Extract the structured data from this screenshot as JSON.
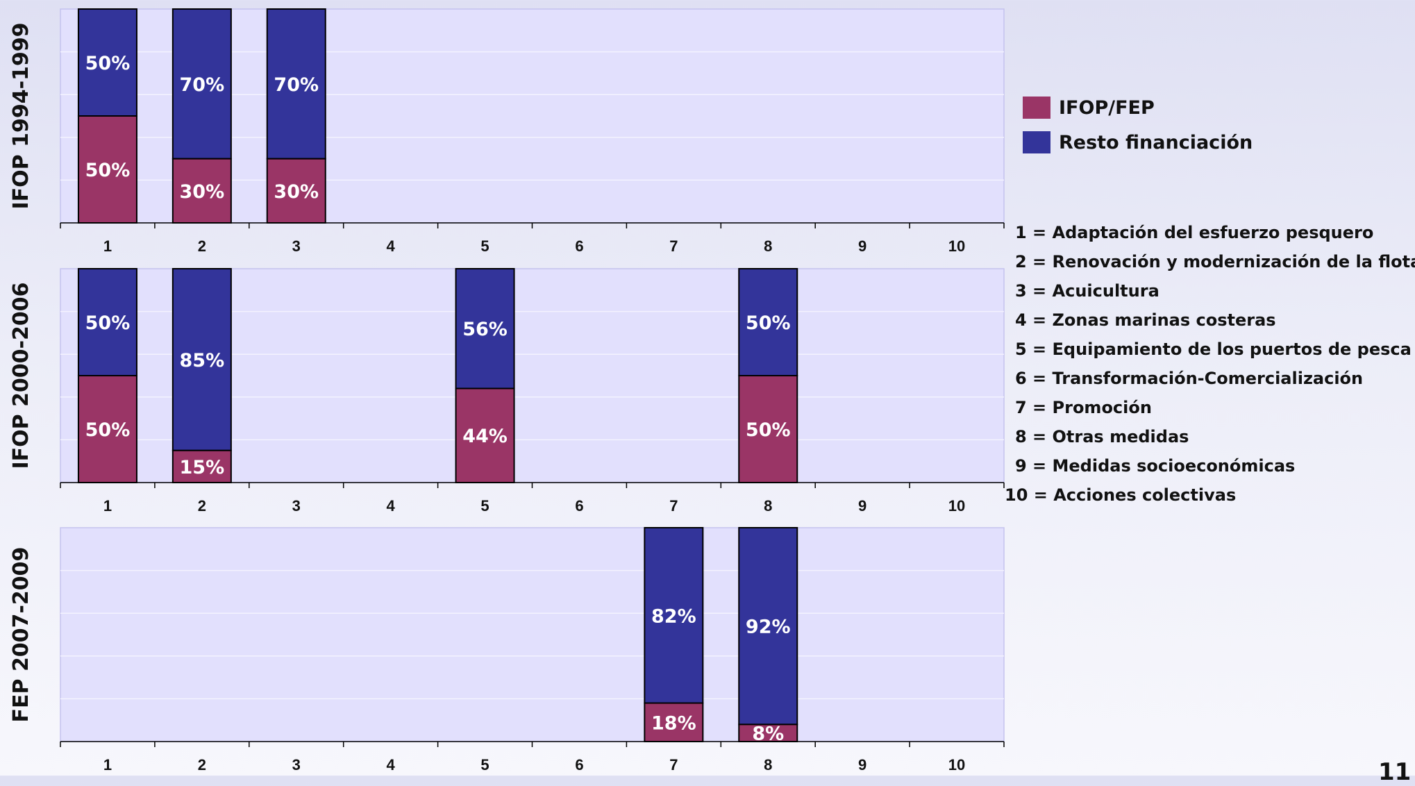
{
  "chart_data": {
    "type": "bar",
    "stacked": true,
    "stack_unit": "percent",
    "categories": [
      "1",
      "2",
      "3",
      "4",
      "5",
      "6",
      "7",
      "8",
      "9",
      "10"
    ],
    "ylim": [
      0,
      100
    ],
    "grid": true,
    "legend_position": "right",
    "series_names": [
      "IFOP/FEP",
      "Resto financiación"
    ],
    "colors": {
      "IFOP/FEP": "#9a3566",
      "Resto financiación": "#33349a"
    },
    "panels": [
      {
        "title": "IFOP 1994-1999",
        "bars": [
          {
            "category": "1",
            "ifop": 50,
            "resto": 50,
            "ifop_label": "50%",
            "resto_label": "50%"
          },
          {
            "category": "2",
            "ifop": 30,
            "resto": 70,
            "ifop_label": "30%",
            "resto_label": "70%"
          },
          {
            "category": "3",
            "ifop": 30,
            "resto": 70,
            "ifop_label": "30%",
            "resto_label": "70%"
          }
        ]
      },
      {
        "title": "IFOP 2000-2006",
        "bars": [
          {
            "category": "1",
            "ifop": 50,
            "resto": 50,
            "ifop_label": "50%",
            "resto_label": "50%"
          },
          {
            "category": "2",
            "ifop": 15,
            "resto": 85,
            "ifop_label": "15%",
            "resto_label": "85%"
          },
          {
            "category": "5",
            "ifop": 44,
            "resto": 56,
            "ifop_label": "44%",
            "resto_label": "56%"
          },
          {
            "category": "8",
            "ifop": 50,
            "resto": 50,
            "ifop_label": "50%",
            "resto_label": "50%"
          }
        ]
      },
      {
        "title": "FEP 2007-2009",
        "bars": [
          {
            "category": "7",
            "ifop": 18,
            "resto": 82,
            "ifop_label": "18%",
            "resto_label": "82%"
          },
          {
            "category": "8",
            "ifop": 8,
            "resto": 92,
            "ifop_label": "8%",
            "resto_label": "92%"
          }
        ]
      }
    ]
  },
  "legend": {
    "items": [
      {
        "label": "IFOP/FEP",
        "color": "#9a3566"
      },
      {
        "label": "Resto financiación",
        "color": "#33349a"
      }
    ]
  },
  "category_key": [
    "1 = Adaptación del esfuerzo pesquero",
    "2 = Renovación y modernización de la flota",
    "3 = Acuicultura",
    "4 = Zonas marinas costeras",
    "5 = Equipamiento de los puertos de pesca",
    "6 = Transformación-Comercialización",
    "7 = Promoción",
    "8 = Otras medidas",
    "9 = Medidas socioeconómicas",
    "10 = Acciones colectivas"
  ],
  "page_number": "11"
}
